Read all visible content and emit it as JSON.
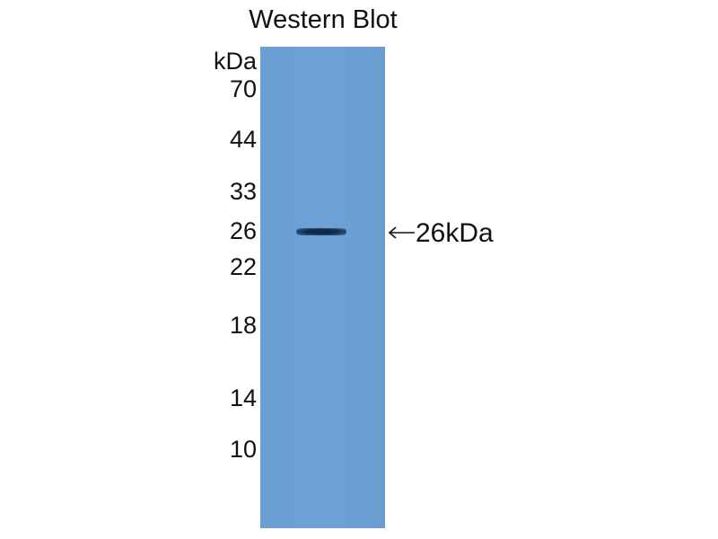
{
  "title": "Western Blot",
  "unit_label": "kDa",
  "markers": [
    "70",
    "44",
    "33",
    "26",
    "22",
    "18",
    "14",
    "10"
  ],
  "band_annotation": "26kDa",
  "colors": {
    "membrane": "#6b9fd4",
    "band": "#0f2a48"
  }
}
